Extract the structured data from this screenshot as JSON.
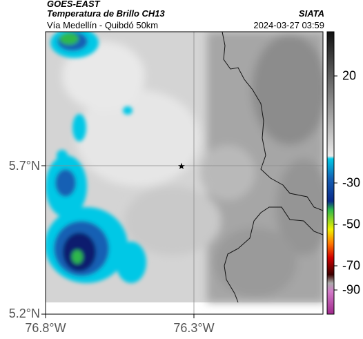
{
  "header": {
    "satellite": "GOES-EAST",
    "product": "Temperatura de Brillo CH13",
    "source": "SIATA",
    "route": "Vía Medellín - Quibdó 50km",
    "datetime": "2024-03-27 03:59"
  },
  "map": {
    "lat_ticks": [
      "5.7°N",
      "5.2°N"
    ],
    "lon_ticks": [
      "76.8°W",
      "76.3°W"
    ],
    "marker_icon": "star-icon"
  },
  "colorbar": {
    "ticks": [
      "20",
      "-30",
      "-50",
      "-70",
      "-90"
    ],
    "colors": {
      "warm_top": "#1a1a1a",
      "warm_bottom": "#e6e6e6",
      "cyan": "#00c8e6",
      "blue": "#1460b4",
      "navy": "#0a1a6e",
      "green": "#2db84b",
      "yellow": "#f0f000",
      "orange": "#ff7800",
      "red": "#d20000",
      "dark_red": "#3c0000",
      "pink": "#d27ac8",
      "magenta": "#a0288c"
    }
  }
}
